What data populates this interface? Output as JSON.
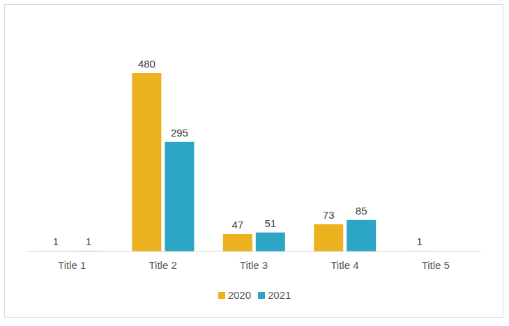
{
  "chart_data": {
    "type": "bar",
    "categories": [
      "Title 1",
      "Title 2",
      "Title 3",
      "Title 4",
      "Title 5"
    ],
    "series": [
      {
        "name": "2020",
        "color": "#ecb11f",
        "values": [
          1,
          480,
          47,
          73,
          1
        ]
      },
      {
        "name": "2021",
        "color": "#2ca6c4",
        "values": [
          1,
          295,
          51,
          85,
          0
        ]
      }
    ],
    "ylim": [
      0,
      600
    ],
    "data_labels": true,
    "tick_labels": "x",
    "legend": "bottom",
    "grid": false
  }
}
